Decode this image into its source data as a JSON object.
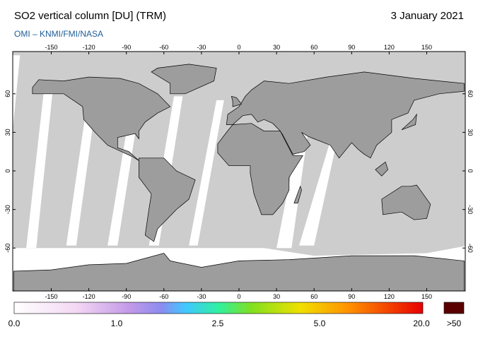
{
  "header": {
    "title": "SO2 vertical column [DU] (TRM)",
    "subtitle": "OMI  –  KNMI/FMI/NASA",
    "date": "3 January 2021"
  },
  "map": {
    "lon_ticks": [
      -150,
      -120,
      -90,
      -60,
      -30,
      0,
      30,
      60,
      90,
      120,
      150
    ],
    "lat_ticks": [
      -60,
      -30,
      0,
      30,
      60
    ]
  },
  "colorbar": {
    "labels": [
      "0.0",
      "1.0",
      "2.5",
      "5.0",
      "20.0"
    ],
    "overflow_label": ">50"
  }
}
